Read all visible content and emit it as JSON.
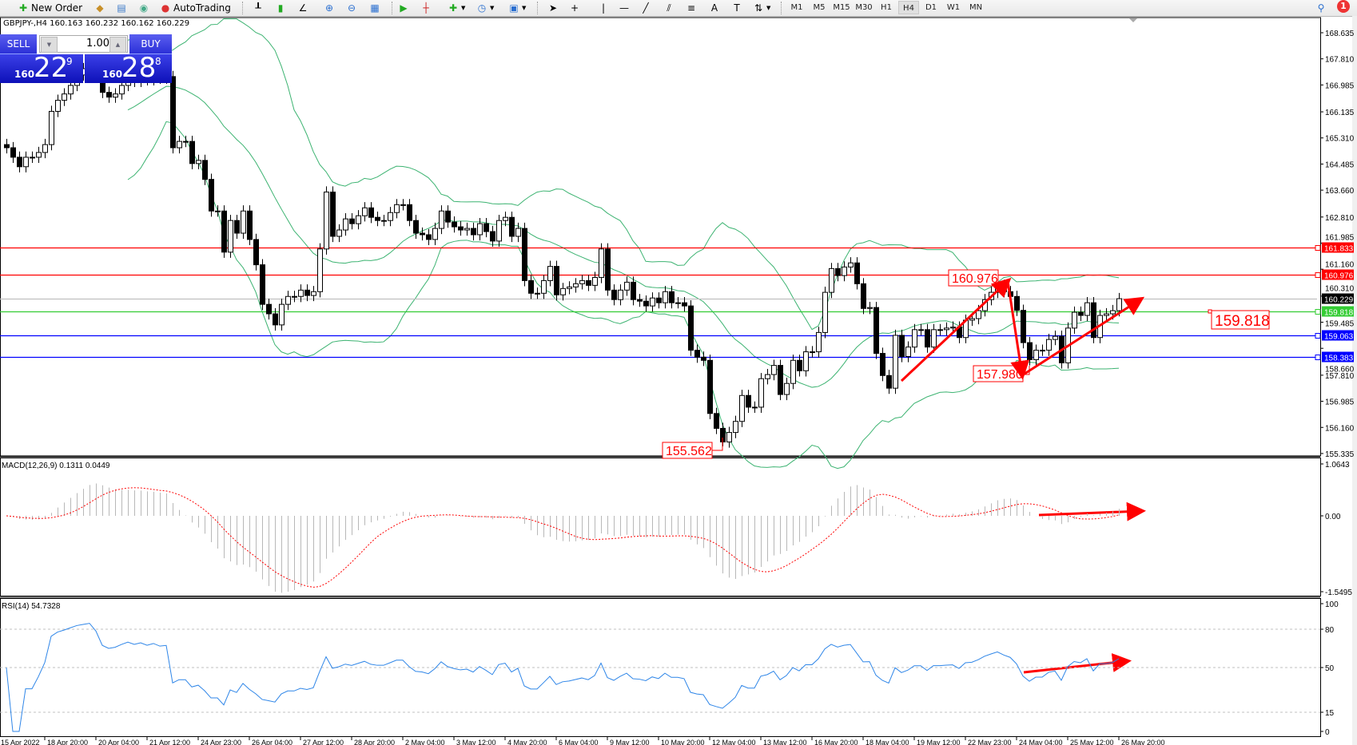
{
  "toolbar": {
    "new_order": "New Order",
    "autotrading": "AutoTrading",
    "timeframes": [
      "M1",
      "M5",
      "M15",
      "M30",
      "H1",
      "H4",
      "D1",
      "W1",
      "MN"
    ],
    "active_timeframe": "H4",
    "notification_count": "1"
  },
  "chart": {
    "symbol_line": "GBPJPY-,H4  160.163 160.232 160.162 160.229",
    "price_ticks": [
      "168.635",
      "167.810",
      "166.985",
      "166.135",
      "165.310",
      "164.485",
      "163.660",
      "162.810",
      "161.985",
      "161.160",
      "160.310",
      "159.485",
      "158.660",
      "157.810",
      "156.985",
      "156.160",
      "155.335"
    ],
    "horizontal_lines": [
      {
        "price": "161.833",
        "color": "#ff0000"
      },
      {
        "price": "160.976",
        "color": "#ff0000"
      },
      {
        "price": "160.229",
        "color": "#000000",
        "line_color": "#c0c0c0"
      },
      {
        "price": "159.818",
        "color": "#33cc33"
      },
      {
        "price": "159.063",
        "color": "#0000ff"
      },
      {
        "price": "158.383",
        "color": "#0000ff"
      }
    ],
    "price_labels": [
      "155.562",
      "160.976",
      "157.980",
      "159.818"
    ],
    "time_labels": [
      "15 Apr 2022",
      "18 Apr 20:00",
      "20 Apr 04:00",
      "21 Apr 12:00",
      "24 Apr 23:00",
      "26 Apr 04:00",
      "27 Apr 12:00",
      "28 Apr 20:00",
      "2 May 04:00",
      "3 May 12:00",
      "4 May 20:00",
      "6 May 04:00",
      "9 May 12:00",
      "10 May 20:00",
      "12 May 04:00",
      "13 May 12:00",
      "16 May 20:00",
      "18 May 04:00",
      "19 May 12:00",
      "22 May 23:00",
      "24 May 04:00",
      "25 May 12:00",
      "26 May 20:00"
    ],
    "colors": {
      "bands": "#3cb371",
      "arrow": "#ff0000",
      "bull_body": "#ffffff",
      "bear_body": "#000000"
    }
  },
  "trade_panel": {
    "sell_label": "SELL",
    "buy_label": "BUY",
    "lot": "1.00",
    "sell_price": {
      "prefix": "160",
      "big": "22",
      "sup": "9"
    },
    "buy_price": {
      "prefix": "160",
      "big": "28",
      "sup": "8"
    }
  },
  "macd": {
    "label": "MACD(12,26,9) 0.1311 0.0449",
    "ticks": [
      "1.0643",
      "0.00",
      "-1.5495"
    ]
  },
  "rsi": {
    "label": "RSI(14) 54.7328",
    "ticks": [
      "100",
      "80",
      "50",
      "15",
      "0"
    ]
  },
  "chart_data": {
    "type": "candlestick",
    "symbol": "GBPJPY-",
    "timeframe": "H4",
    "ylim": [
      155.335,
      168.635
    ],
    "last": 160.229,
    "close": [
      165.0,
      164.7,
      164.4,
      164.7,
      164.7,
      164.85,
      165.1,
      166.15,
      166.5,
      166.7,
      166.97,
      167.3,
      167.5,
      167.7,
      167.4,
      166.75,
      166.6,
      166.7,
      166.97,
      167.2,
      167.1,
      167.25,
      167.15,
      167.3,
      167.2,
      167.25,
      165.0,
      165.2,
      165.2,
      164.5,
      164.6,
      164.0,
      163.0,
      163.0,
      161.7,
      162.7,
      162.3,
      163.0,
      162.1,
      161.3,
      160.05,
      159.75,
      159.4,
      160.05,
      160.3,
      160.3,
      160.5,
      160.33,
      160.45,
      161.8,
      163.6,
      162.2,
      162.4,
      162.75,
      162.6,
      162.85,
      163.1,
      162.8,
      162.7,
      162.7,
      162.95,
      163.2,
      163.2,
      162.7,
      162.3,
      162.25,
      162.1,
      162.45,
      163.0,
      162.65,
      162.5,
      162.4,
      162.45,
      162.25,
      162.6,
      162.35,
      162.05,
      162.7,
      162.8,
      162.2,
      162.45,
      160.8,
      160.4,
      160.4,
      160.8,
      161.25,
      160.35,
      160.55,
      160.6,
      160.7,
      160.8,
      160.65,
      160.9,
      161.8,
      160.5,
      160.2,
      160.5,
      160.75,
      160.2,
      160.15,
      160.0,
      160.25,
      160.1,
      160.45,
      160.1,
      160.1,
      160.0,
      158.6,
      158.38,
      158.28,
      156.6,
      156.13,
      155.7,
      156.0,
      156.35,
      157.17,
      156.8,
      156.8,
      157.7,
      157.83,
      158.12,
      157.2,
      157.55,
      158.28,
      157.95,
      158.55,
      158.55,
      159.16,
      160.43,
      161.18,
      160.96,
      161.23,
      161.36,
      160.7,
      159.92,
      159.95,
      158.5,
      157.8,
      157.4,
      159.07,
      158.4,
      158.7,
      159.25,
      159.25,
      158.7,
      159.25,
      159.25,
      159.3,
      159.33,
      159.0,
      159.55,
      159.6,
      159.85,
      160.2,
      160.43,
      160.65,
      160.45,
      160.3,
      159.86,
      158.84,
      158.3,
      158.6,
      158.6,
      158.94,
      159.04,
      158.2,
      159.3,
      159.8,
      159.7,
      160.1,
      159.0,
      159.7,
      159.75,
      159.85,
      160.229
    ],
    "low_marked": 155.562,
    "indicators": [
      "Bollinger Bands",
      "MACD(12,26,9)",
      "RSI(14)"
    ],
    "rsi_levels": [
      80,
      50,
      15
    ]
  }
}
